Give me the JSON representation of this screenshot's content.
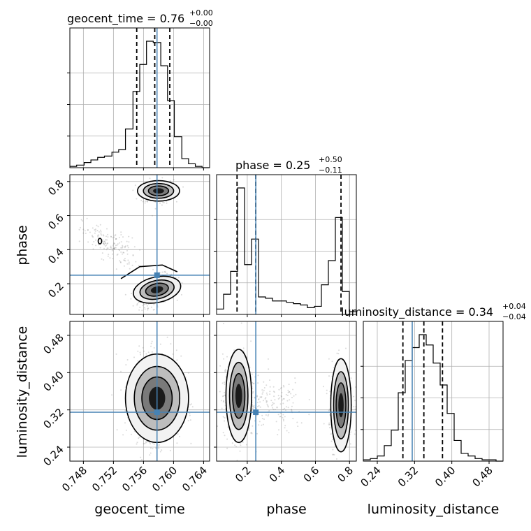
{
  "chart_data": {
    "type": "corner",
    "parameters": [
      "geocent_time",
      "phase",
      "luminosity_distance"
    ],
    "axis_labels": {
      "geocent_time": "geocent_time",
      "phase": "phase",
      "luminosity_distance": "luminosity_distance"
    },
    "ranges": {
      "geocent_time": [
        0.7462,
        0.7648
      ],
      "phase": [
        0.02,
        0.84
      ],
      "luminosity_distance": [
        0.21,
        0.51
      ]
    },
    "ticks": {
      "geocent_time": [
        0.748,
        0.752,
        0.756,
        0.76,
        0.764
      ],
      "phase": [
        0.2,
        0.4,
        0.6,
        0.8
      ],
      "luminosity_distance": [
        0.24,
        0.32,
        0.4,
        0.48
      ]
    },
    "tick_labels": {
      "geocent_time": [
        "0.748",
        "0.752",
        "0.756",
        "0.760",
        "0.764"
      ],
      "phase": [
        "0.2",
        "0.4",
        "0.6",
        "0.8"
      ],
      "luminosity_distance": [
        "0.24",
        "0.32",
        "0.40",
        "0.48"
      ]
    },
    "truths": {
      "geocent_time": 0.7578,
      "phase": 0.25,
      "luminosity_distance": 0.315
    },
    "truth_color": "#4682b4",
    "quantiles": {
      "geocent_time": [
        0.7551,
        0.7575,
        0.7595
      ],
      "phase": [
        0.14,
        0.25,
        0.75
      ],
      "luminosity_distance": [
        0.295,
        0.34,
        0.38
      ]
    },
    "titles": {
      "geocent_time": {
        "main": "geocent_time = 0.76",
        "plus": "+0.00",
        "minus": "−0.00"
      },
      "phase": {
        "main": "phase = 0.25",
        "plus": "+0.50",
        "minus": "−0.11"
      },
      "luminosity_distance": {
        "main": "luminosity_distance = 0.34",
        "plus": "+0.04",
        "minus": "−0.04"
      }
    },
    "histograms": {
      "geocent_time": {
        "edges": [
          0.7462,
          0.7471,
          0.7481,
          0.749,
          0.7499,
          0.7508,
          0.7518,
          0.7527,
          0.7536,
          0.7546,
          0.7555,
          0.7564,
          0.7573,
          0.7583,
          0.7592,
          0.7601,
          0.7611,
          0.762,
          0.7629,
          0.7638,
          0.7648
        ],
        "counts": [
          1,
          2,
          4,
          6,
          8,
          9,
          12,
          14,
          30,
          59,
          80,
          98,
          97,
          79,
          52,
          24,
          7,
          3,
          1,
          0
        ]
      },
      "phase": {
        "edges": [
          0.02,
          0.061,
          0.102,
          0.143,
          0.184,
          0.225,
          0.266,
          0.307,
          0.348,
          0.389,
          0.43,
          0.471,
          0.512,
          0.553,
          0.594,
          0.635,
          0.676,
          0.717,
          0.758,
          0.799,
          0.84
        ],
        "counts": [
          4,
          15,
          32,
          94,
          37,
          56,
          13,
          12,
          10,
          10,
          9,
          8,
          7,
          5,
          6,
          22,
          40,
          72,
          17,
          2
        ]
      },
      "luminosity_distance": {
        "edges": [
          0.21,
          0.225,
          0.24,
          0.255,
          0.27,
          0.285,
          0.3,
          0.315,
          0.33,
          0.345,
          0.36,
          0.375,
          0.39,
          0.405,
          0.42,
          0.435,
          0.45,
          0.465,
          0.48,
          0.495,
          0.51
        ],
        "counts": [
          1,
          2,
          4,
          12,
          24,
          53,
          78,
          88,
          98,
          90,
          76,
          59,
          37,
          16,
          6,
          4,
          2,
          1,
          1,
          0
        ]
      }
    },
    "grid": true
  }
}
